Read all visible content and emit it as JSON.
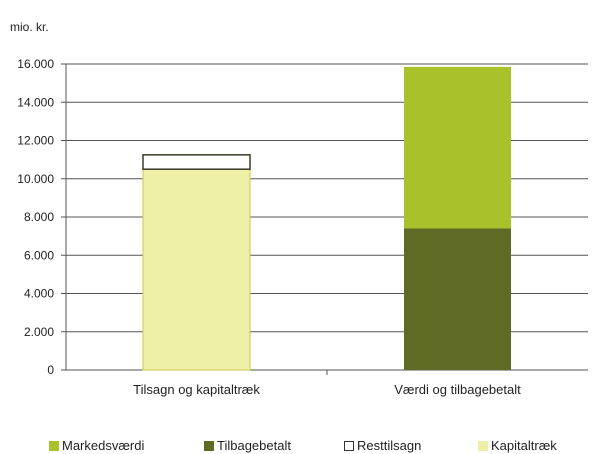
{
  "chart_data": {
    "type": "bar",
    "stacked": true,
    "unit_label": "mio. kr.",
    "categories": [
      "Tilsagn og kapitaltræk",
      "Værdi og tilbagebetalt"
    ],
    "series": [
      {
        "name": "Markedsværdi",
        "color": "#a9c12a",
        "values": [
          0,
          8450
        ]
      },
      {
        "name": "Tilbagebetalt",
        "color": "#5f6a24",
        "values": [
          0,
          7400
        ]
      },
      {
        "name": "Resttilsagn",
        "color": "#ffffff",
        "values": [
          750,
          0
        ]
      },
      {
        "name": "Kapitaltræk",
        "color": "#eef0a8",
        "values": [
          10500,
          0
        ]
      }
    ],
    "stack_order": [
      "Kapitaltræk",
      "Resttilsagn",
      "Tilbagebetalt",
      "Markedsværdi"
    ],
    "ylim": [
      0,
      16000
    ],
    "yticks": [
      0,
      2000,
      4000,
      6000,
      8000,
      10000,
      12000,
      14000,
      16000
    ],
    "ytick_labels": [
      "0",
      "2.000",
      "4.000",
      "6.000",
      "8.000",
      "10.000",
      "12.000",
      "14.000",
      "16.000"
    ],
    "grid": true,
    "legend_position": "bottom"
  }
}
